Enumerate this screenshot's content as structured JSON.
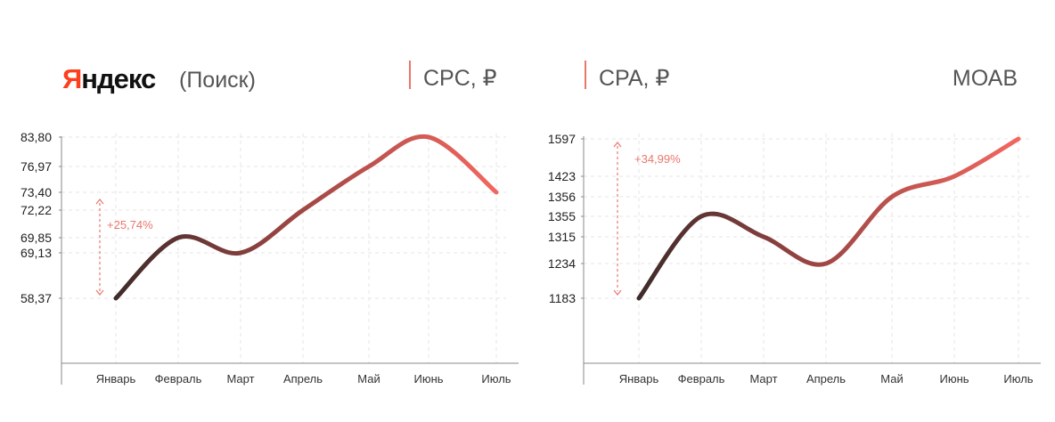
{
  "header": {
    "brand": "Яндекс",
    "brand_first_letter": "Я",
    "brand_rest": "ндекс",
    "subtitle": "(Поиск)",
    "metric_cpc": "CPC, ₽",
    "metric_cpa": "CPA, ₽",
    "metric_right": "МОАВ"
  },
  "colors": {
    "brand_red": "#fc3f1d",
    "brand_black": "#111111",
    "accent": "#e8776c",
    "line_start": "#3e2b29",
    "line_mid": "#9a4543",
    "line_end": "#f2675f"
  },
  "chart_data": [
    {
      "type": "line",
      "title": "CPC, ₽",
      "categories": [
        "Январь",
        "Февраль",
        "Март",
        "Апрель",
        "Май",
        "Июнь",
        "Июль"
      ],
      "values": [
        58.37,
        69.85,
        69.13,
        72.22,
        76.97,
        83.8,
        73.4
      ],
      "yticks": [
        "83,80",
        "76,97",
        "73,40",
        "72,22",
        "69,85",
        "69,13",
        "58,37"
      ],
      "annotation": "+25,74%",
      "grid": true
    },
    {
      "type": "line",
      "title": "CPA, ₽",
      "categories": [
        "Январь",
        "Февраль",
        "Март",
        "Апрель",
        "Май",
        "Июнь",
        "Июль"
      ],
      "values": [
        1183,
        1355,
        1315,
        1234,
        1356,
        1423,
        1597
      ],
      "yticks": [
        "1597",
        "1423",
        "1356",
        "1355",
        "1315",
        "1234",
        "1183"
      ],
      "annotation": "+34,99%",
      "grid": true
    }
  ]
}
